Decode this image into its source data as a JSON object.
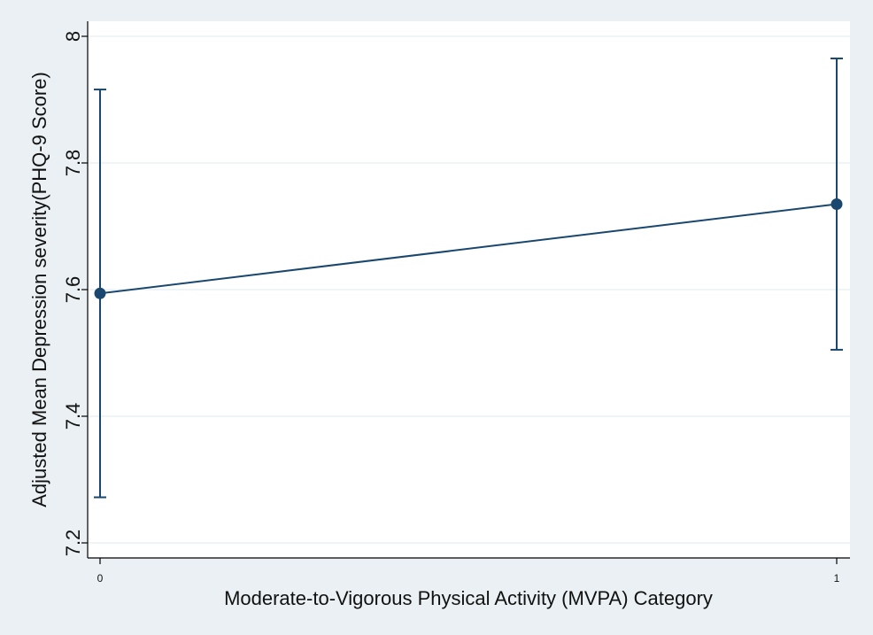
{
  "chart_data": {
    "type": "line",
    "title": "",
    "xlabel": "Moderate-to-Vigorous Physical Activity (MVPA) Category",
    "ylabel": "Adjusted Mean Depression severity(PHQ-9 Score)",
    "x": [
      0,
      1
    ],
    "x_tick_labels": [
      "0",
      "1"
    ],
    "xlim": [
      0,
      1
    ],
    "y_ticks": [
      7.2,
      7.4,
      7.6,
      7.8,
      8
    ],
    "y_tick_labels": [
      "7.2",
      "7.4",
      "7.6",
      "7.8",
      "8"
    ],
    "ylim": [
      7.2,
      8.0
    ],
    "series": [
      {
        "values": [
          7.594,
          7.735
        ],
        "ci_lower": [
          7.272,
          7.505
        ],
        "ci_upper": [
          7.916,
          7.965
        ]
      }
    ],
    "grid": true,
    "legend": "none",
    "colors": {
      "series": "#1a476f",
      "plot_background": "#ffffff",
      "page_background": "#eaf0f3",
      "grid": "#eaf0f3"
    }
  }
}
